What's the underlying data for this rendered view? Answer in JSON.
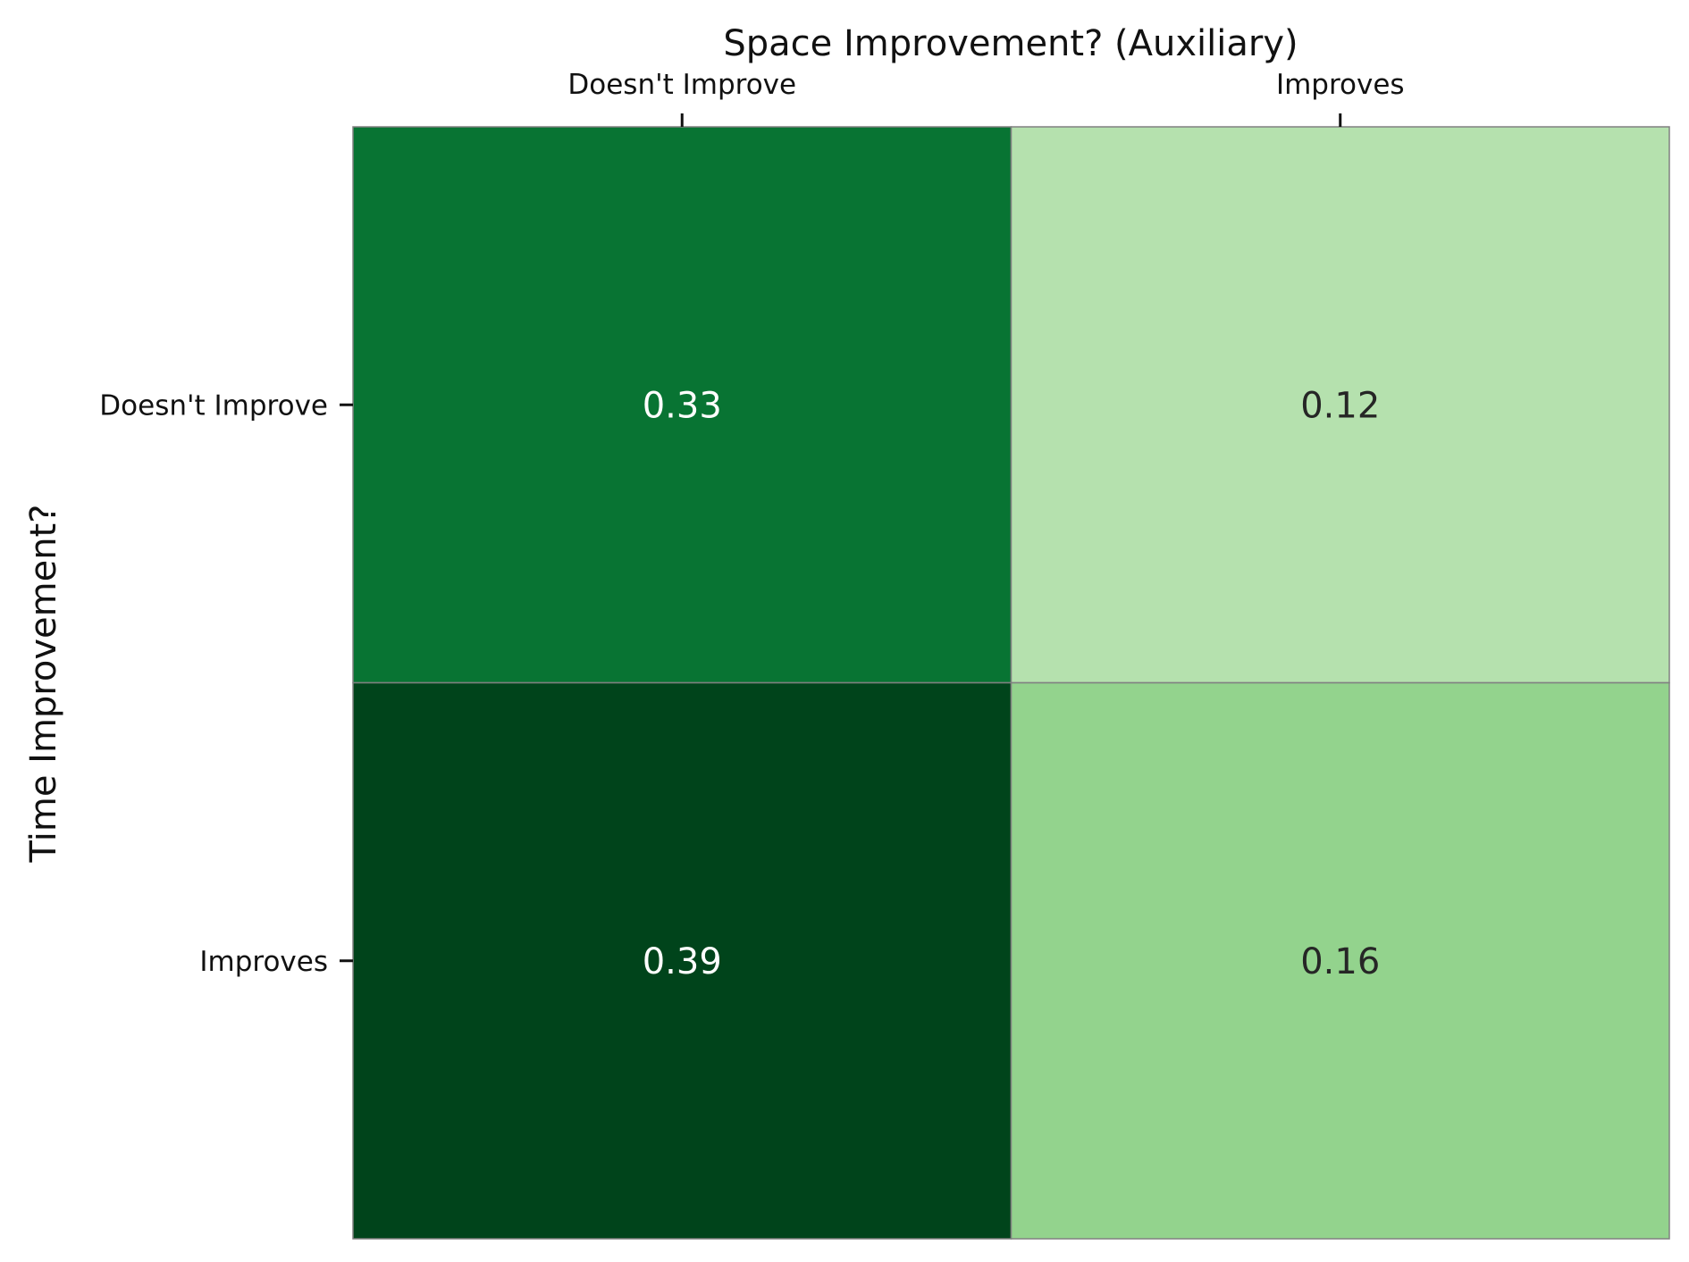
{
  "chart_data": {
    "type": "heatmap",
    "title": "",
    "xlabel": "Space Improvement? (Auxiliary)",
    "ylabel": "Time Improvement?",
    "x_categories": [
      "Doesn't Improve",
      "Improves"
    ],
    "y_categories": [
      "Doesn't Improve",
      "Improves"
    ],
    "x_axis_position": "top",
    "values": [
      [
        0.33,
        0.12
      ],
      [
        0.39,
        0.16
      ]
    ],
    "value_labels": [
      [
        "0.33",
        "0.12"
      ],
      [
        "0.39",
        "0.16"
      ]
    ],
    "colormap": "Greens",
    "cell_colors": [
      [
        "#087433",
        "#b5e1ae"
      ],
      [
        "#00441b",
        "#93d38d"
      ]
    ],
    "text_colors": [
      [
        "#ffffff",
        "#262626"
      ],
      [
        "#ffffff",
        "#262626"
      ]
    ],
    "grid": false,
    "colorbar": false
  }
}
